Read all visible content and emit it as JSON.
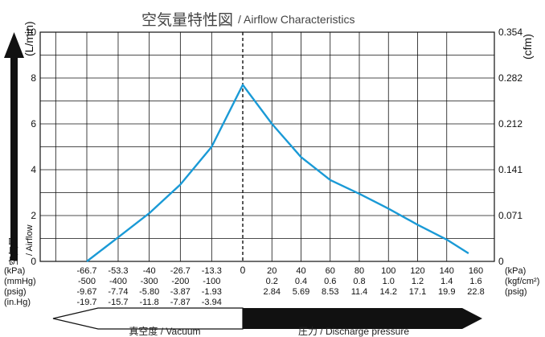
{
  "chart_data": {
    "type": "line",
    "title": "空気量特性図",
    "subtitle": "/ Airflow Characteristics",
    "y_left_label": "(L/min)",
    "y_right_label": "(cfm)",
    "y_left_ticks": [
      "0",
      "2",
      "4",
      "6",
      "8",
      "10"
    ],
    "y_left_tick_values": [
      0,
      2,
      4,
      6,
      8,
      10
    ],
    "y_right_ticks": [
      "0",
      "0.071",
      "0.141",
      "0.212",
      "0.282",
      "0.354"
    ],
    "ylim": [
      0,
      10
    ],
    "xlim": [
      -80,
      180
    ],
    "x_range_minor": [
      -80,
      0,
      0,
      160
    ],
    "grid": true,
    "side_label_jp": "空気量",
    "side_label_en": "/ Airflow",
    "series": [
      {
        "color": "#1a9ad6",
        "x": [
          -66.7,
          -53.3,
          -40,
          -26.7,
          -13.3,
          0,
          20,
          40,
          60,
          80,
          100,
          120,
          140,
          155
        ],
        "y": [
          0,
          1.05,
          2.1,
          3.35,
          5.0,
          7.7,
          6.0,
          4.55,
          3.55,
          2.95,
          2.3,
          1.6,
          0.95,
          0.35
        ]
      }
    ],
    "vacuum_axes": {
      "units": [
        "(kPa)",
        "(mmHg)",
        "(psig)",
        "(in.Hg)"
      ],
      "rows": [
        [
          "-66.7",
          "-53.3",
          "-40",
          "-26.7",
          "-13.3"
        ],
        [
          "-500",
          "-400",
          "-300",
          "-200",
          "-100"
        ],
        [
          "-9.67",
          "-7.74",
          "-5.80",
          "-3.87",
          "-1.93"
        ],
        [
          "-19.7",
          "-15.7",
          "-11.8",
          "-7.87",
          "-3.94"
        ]
      ]
    },
    "zero_label": "0",
    "pressure_axes": {
      "units": [
        "(kPa)",
        "(kgf/cm²)",
        "(psig)"
      ],
      "rows": [
        [
          "20",
          "40",
          "60",
          "80",
          "100",
          "120",
          "140",
          "160"
        ],
        [
          "0.2",
          "0.4",
          "0.6",
          "0.8",
          "1.0",
          "1.2",
          "1.4",
          "1.6"
        ],
        [
          "2.84",
          "5.69",
          "8.53",
          "11.4",
          "14.2",
          "17.1",
          "19.9",
          "22.8"
        ]
      ]
    },
    "vacuum_caption": "真空度 / Vacuum",
    "pressure_caption": "圧力 / Discharge pressure"
  }
}
